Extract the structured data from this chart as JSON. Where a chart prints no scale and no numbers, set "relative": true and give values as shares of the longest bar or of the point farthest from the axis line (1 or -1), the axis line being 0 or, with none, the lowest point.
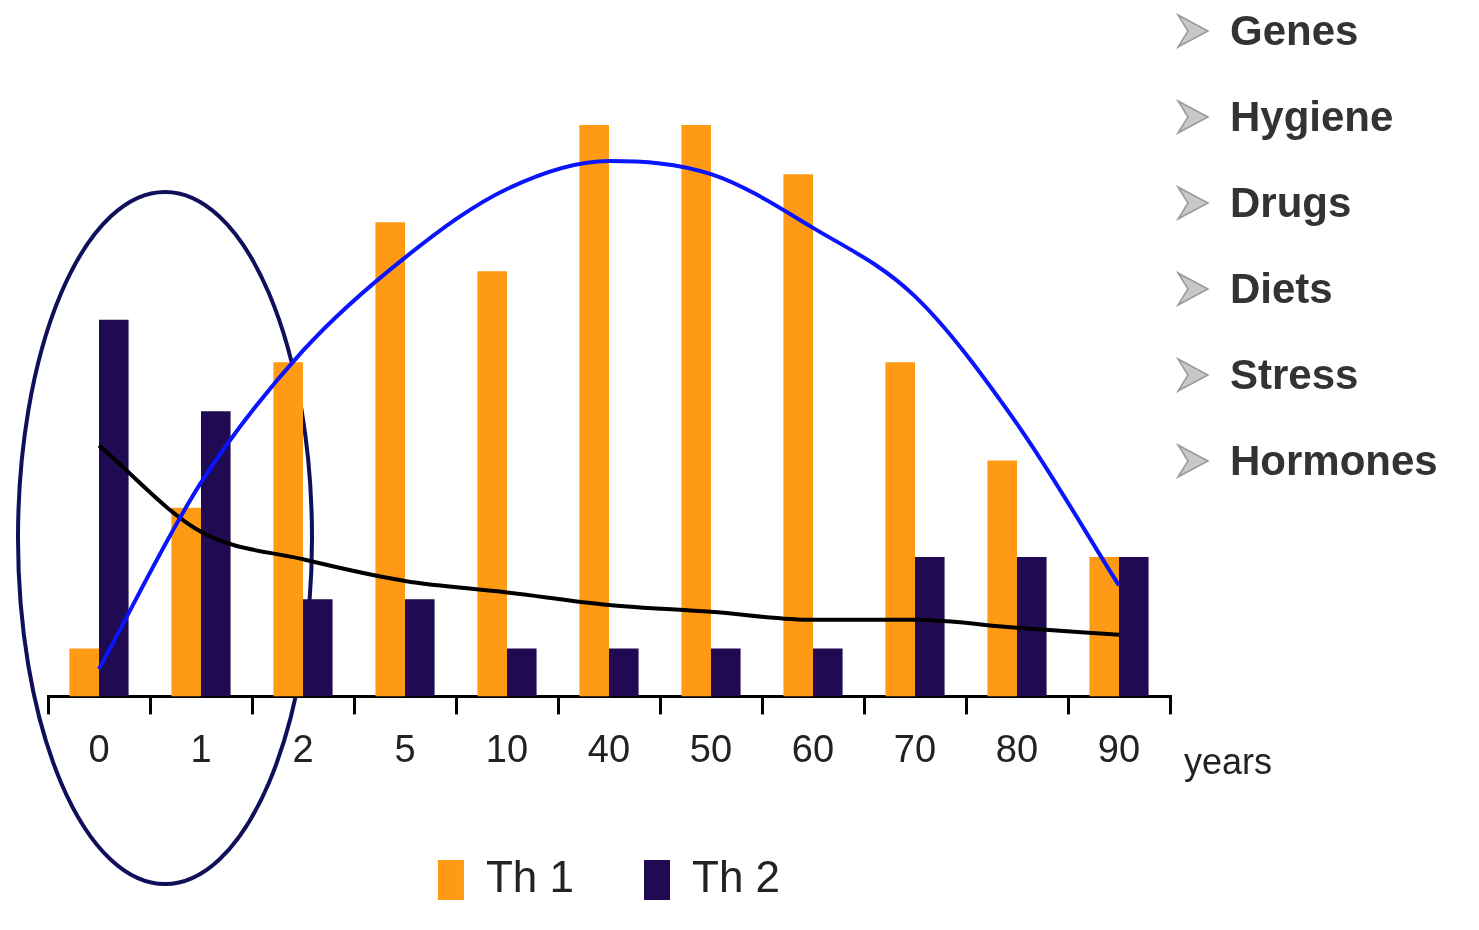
{
  "chart_data": {
    "type": "bar",
    "relative": true,
    "xlabel": "years",
    "categories": [
      "0",
      "1",
      "2",
      "5",
      "10",
      "40",
      "50",
      "60",
      "70",
      "80",
      "90"
    ],
    "series": [
      {
        "name": "Th 1",
        "color": "#ff9a14",
        "values": [
          0.084,
          0.33,
          0.585,
          0.83,
          0.744,
          1,
          1,
          0.914,
          0.585,
          0.413,
          0.244
        ]
      },
      {
        "name": "Th 2",
        "color": "#200a52",
        "values": [
          0.659,
          0.499,
          0.17,
          0.17,
          0.084,
          0.084,
          0.084,
          0.084,
          0.244,
          0.244,
          0.244
        ]
      },
      {
        "type": "line",
        "color": "#0a14ff",
        "values": [
          0.048,
          0.374,
          0.605,
          0.768,
          0.888,
          0.937,
          0.914,
          0.82,
          0.7,
          0.477,
          0.194
        ]
      },
      {
        "type": "line",
        "color": "#000000",
        "values": [
          0.439,
          0.288,
          0.24,
          0.202,
          0.182,
          0.16,
          0.148,
          0.134,
          0.134,
          0.12,
          0.108
        ]
      }
    ],
    "annotations": [
      "Genes",
      "Hygiene",
      "Drugs",
      "Diets",
      "Stress",
      "Hormones"
    ],
    "grid": false,
    "legend": "bottom"
  }
}
